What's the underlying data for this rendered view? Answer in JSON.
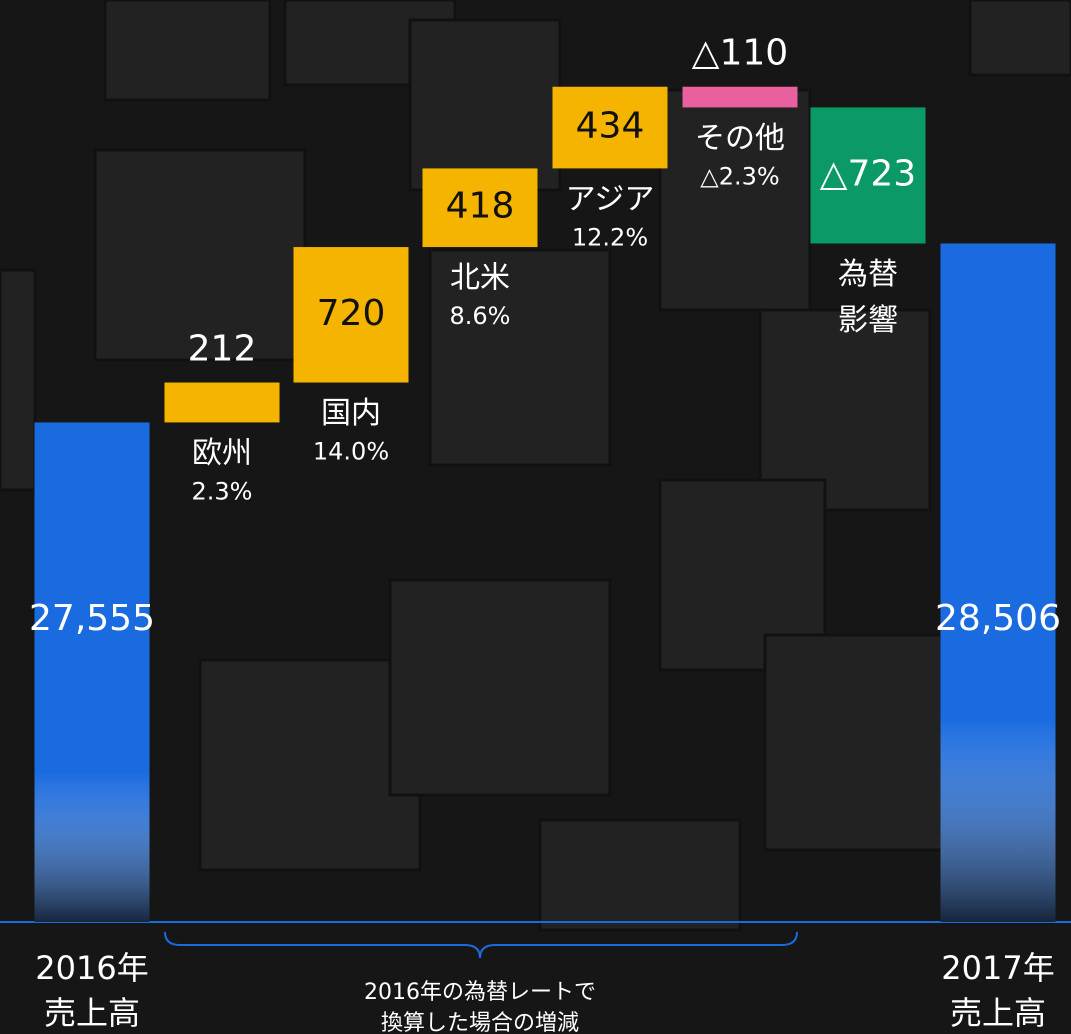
{
  "chart_data": {
    "type": "waterfall",
    "categories": [
      [
        "2016年",
        "売上高"
      ],
      [
        "欧州"
      ],
      [
        "国内"
      ],
      [
        "北米"
      ],
      [
        "アジア"
      ],
      [
        "その他"
      ],
      [
        "為替",
        "影響"
      ],
      [
        "2017年",
        "売上高"
      ]
    ],
    "measure": [
      "total",
      "relative",
      "relative",
      "relative",
      "relative",
      "relative",
      "relative",
      "total"
    ],
    "values": [
      27555,
      212,
      720,
      418,
      434,
      -110,
      -723,
      28506
    ],
    "value_labels": [
      "27,555",
      "212",
      "720",
      "418",
      "434",
      "△110",
      "△723",
      "28,506"
    ],
    "growth_labels": [
      null,
      "2.3%",
      "14.0%",
      "8.6%",
      "12.2%",
      "△2.3%",
      null,
      null
    ],
    "colors": [
      "#1a6be0",
      "#f5b400",
      "#f5b400",
      "#f5b400",
      "#f5b400",
      "#e8609e",
      "#0b9a66",
      "#1a6be0"
    ],
    "ylim": [
      24900,
      29800
    ],
    "annotation": [
      "2016年の為替レートで",
      "換算した場合の増減"
    ]
  }
}
